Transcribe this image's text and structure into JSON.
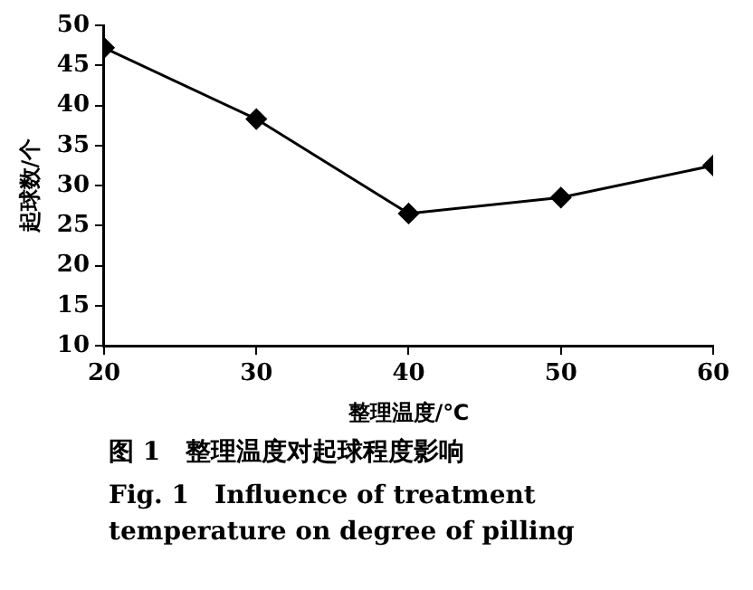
{
  "chart_data": {
    "type": "line",
    "xlabel": "整理温度/℃",
    "ylabel": "起球数/个",
    "x": [
      20,
      30,
      40,
      50,
      60
    ],
    "series": [
      {
        "color": "#000000",
        "values": [
          47.2,
          38.3,
          26.5,
          28.5,
          32.5
        ]
      }
    ],
    "xlim": [
      20,
      60
    ],
    "xticks": [
      20,
      30,
      40,
      50,
      60
    ],
    "ylim": [
      10,
      50
    ],
    "yticks": [
      10,
      15,
      20,
      25,
      30,
      35,
      40,
      45,
      50
    ],
    "grid": false,
    "legend": false,
    "marker": "diamond",
    "line_style": "solid",
    "annotations": [
      "图 1　整理温度对起球程度影响",
      "Fig. 1　Influence of treatment temperature on degree of pilling"
    ]
  }
}
